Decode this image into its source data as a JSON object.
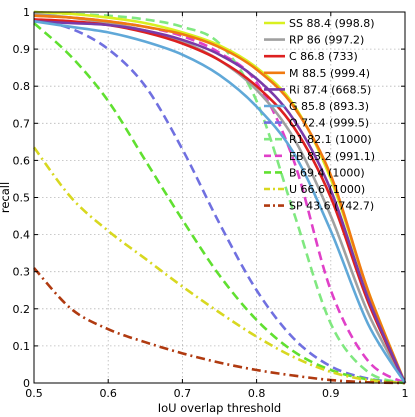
{
  "chart_data": {
    "type": "line",
    "title": "",
    "xlabel": "IoU overlap threshold",
    "ylabel": "recall",
    "xlim": [
      0.5,
      1
    ],
    "ylim": [
      0,
      1
    ],
    "xticks": [
      "0.5",
      "0.6",
      "0.7",
      "0.8",
      "0.9",
      "1"
    ],
    "yticks": [
      "0",
      "0.1",
      "0.2",
      "0.3",
      "0.4",
      "0.5",
      "0.6",
      "0.7",
      "0.8",
      "0.9",
      "1"
    ],
    "grid": true,
    "legend_position": "top-right",
    "x": [
      0.5,
      0.55,
      0.6,
      0.65,
      0.7,
      0.75,
      0.8,
      0.85,
      0.9,
      0.95,
      1.0
    ],
    "series": [
      {
        "name": "SS 88.4 (998.8)",
        "color": "#d9f020",
        "style": "solid",
        "values": [
          1.0,
          0.995,
          0.985,
          0.97,
          0.945,
          0.91,
          0.85,
          0.75,
          0.55,
          0.25,
          0.0
        ]
      },
      {
        "name": "RP 86 (997.2)",
        "color": "#a0a0a0",
        "style": "solid",
        "values": [
          0.995,
          0.985,
          0.97,
          0.95,
          0.92,
          0.87,
          0.79,
          0.66,
          0.45,
          0.19,
          0.0
        ]
      },
      {
        "name": "C 86.8 (733)",
        "color": "#dd2020",
        "style": "solid",
        "values": [
          0.98,
          0.975,
          0.965,
          0.945,
          0.915,
          0.87,
          0.8,
          0.69,
          0.5,
          0.22,
          0.0
        ]
      },
      {
        "name": "M 88.5 (999.4)",
        "color": "#f07a10",
        "style": "solid",
        "values": [
          0.99,
          0.985,
          0.975,
          0.96,
          0.94,
          0.905,
          0.845,
          0.745,
          0.56,
          0.25,
          0.0
        ]
      },
      {
        "name": "Ri 87.4 (668.5)",
        "color": "#7a3aa8",
        "style": "solid",
        "values": [
          0.975,
          0.97,
          0.965,
          0.95,
          0.925,
          0.885,
          0.82,
          0.71,
          0.52,
          0.23,
          0.0
        ]
      },
      {
        "name": "G 85.8 (893.3)",
        "color": "#60a8d8",
        "style": "solid",
        "values": [
          0.975,
          0.96,
          0.945,
          0.92,
          0.885,
          0.83,
          0.745,
          0.62,
          0.41,
          0.16,
          0.0
        ]
      },
      {
        "name": "O 72.4 (999.5)",
        "color": "#7070e0",
        "style": "dashed",
        "values": [
          0.98,
          0.955,
          0.9,
          0.8,
          0.63,
          0.43,
          0.25,
          0.12,
          0.045,
          0.012,
          0.0
        ]
      },
      {
        "name": "R1 82.1 (1000)",
        "color": "#80e880",
        "style": "dashed",
        "values": [
          1.0,
          0.995,
          0.99,
          0.98,
          0.96,
          0.915,
          0.76,
          0.46,
          0.16,
          0.03,
          0.0
        ]
      },
      {
        "name": "EB 83.2 (991.1)",
        "color": "#e040c8",
        "style": "dashed",
        "values": [
          0.99,
          0.985,
          0.975,
          0.96,
          0.935,
          0.89,
          0.81,
          0.6,
          0.25,
          0.06,
          0.0
        ]
      },
      {
        "name": "B 69.4 (1000)",
        "color": "#60e030",
        "style": "dashed",
        "values": [
          0.97,
          0.88,
          0.76,
          0.6,
          0.44,
          0.29,
          0.17,
          0.085,
          0.035,
          0.01,
          0.0
        ]
      },
      {
        "name": "U 66.6 (1000)",
        "color": "#d8d820",
        "style": "dashdot",
        "values": [
          0.635,
          0.5,
          0.41,
          0.335,
          0.26,
          0.19,
          0.125,
          0.07,
          0.03,
          0.008,
          0.0
        ]
      },
      {
        "name": "SP 43.6 (742.7)",
        "color": "#b03a10",
        "style": "dashdot",
        "values": [
          0.31,
          0.2,
          0.145,
          0.11,
          0.08,
          0.055,
          0.035,
          0.02,
          0.008,
          0.002,
          0.0
        ]
      }
    ]
  }
}
